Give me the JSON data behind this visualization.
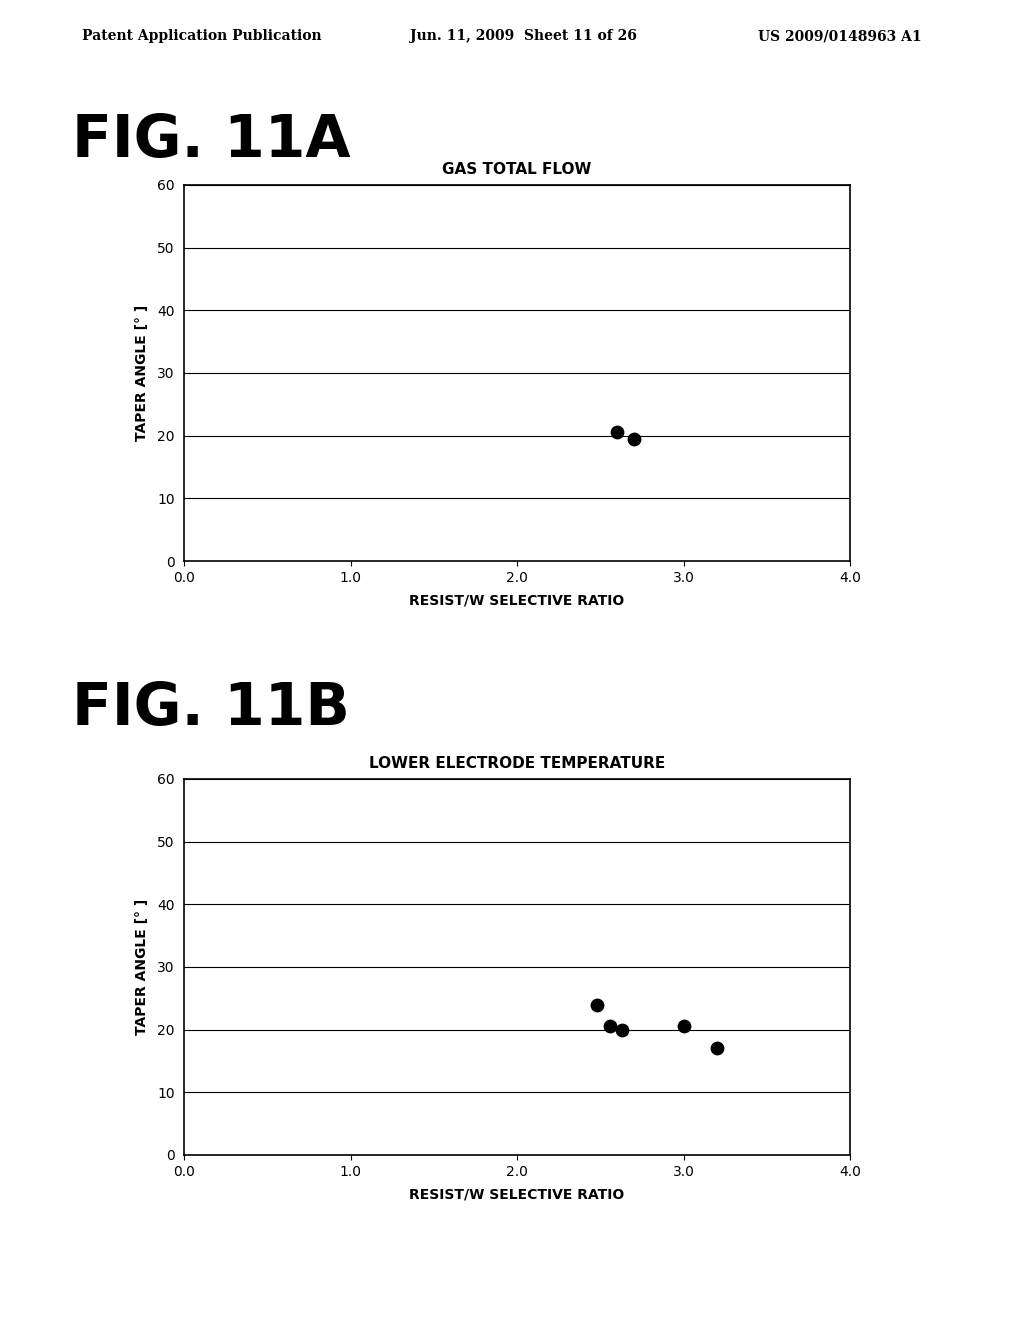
{
  "fig_label_a": "FIG. 11A",
  "fig_label_b": "FIG. 11B",
  "header_left": "Patent Application Publication",
  "header_center": "Jun. 11, 2009  Sheet 11 of 26",
  "header_right": "US 2009/0148963 A1",
  "chart_a": {
    "title": "GAS TOTAL FLOW",
    "xlabel": "RESIST/W SELECTIVE RATIO",
    "ylabel": "TAPER ANGLE [° ]",
    "xlim": [
      0.0,
      4.0
    ],
    "ylim": [
      0,
      60
    ],
    "xticks": [
      0.0,
      1.0,
      2.0,
      3.0,
      4.0
    ],
    "xticklabels": [
      "0.0",
      "1.0",
      "2.0",
      "3.0",
      "4.0"
    ],
    "yticks": [
      0,
      10,
      20,
      30,
      40,
      50,
      60
    ],
    "yticklabels": [
      "0",
      "10",
      "20",
      "30",
      "40",
      "50",
      "60"
    ],
    "points_x": [
      2.6,
      2.7
    ],
    "points_y": [
      20.5,
      19.5
    ]
  },
  "chart_b": {
    "title": "LOWER ELECTRODE TEMPERATURE",
    "xlabel": "RESIST/W SELECTIVE RATIO",
    "ylabel": "TAPER ANGLE [° ]",
    "xlim": [
      0.0,
      4.0
    ],
    "ylim": [
      0,
      60
    ],
    "xticks": [
      0.0,
      1.0,
      2.0,
      3.0,
      4.0
    ],
    "xticklabels": [
      "0.0",
      "1.0",
      "2.0",
      "3.0",
      "4.0"
    ],
    "yticks": [
      0,
      10,
      20,
      30,
      40,
      50,
      60
    ],
    "yticklabels": [
      "0",
      "10",
      "20",
      "30",
      "40",
      "50",
      "60"
    ],
    "points_x": [
      2.48,
      2.56,
      2.63,
      3.0,
      3.2
    ],
    "points_y": [
      24.0,
      20.5,
      20.0,
      20.5,
      17.0
    ]
  },
  "background_color": "#ffffff",
  "point_color": "#000000",
  "point_size": 80,
  "axis_linewidth": 1.2,
  "grid_linewidth": 0.8,
  "title_fontsize": 11,
  "label_fontsize": 10,
  "tick_fontsize": 10,
  "fig_label_fontsize": 42,
  "header_fontsize": 10
}
